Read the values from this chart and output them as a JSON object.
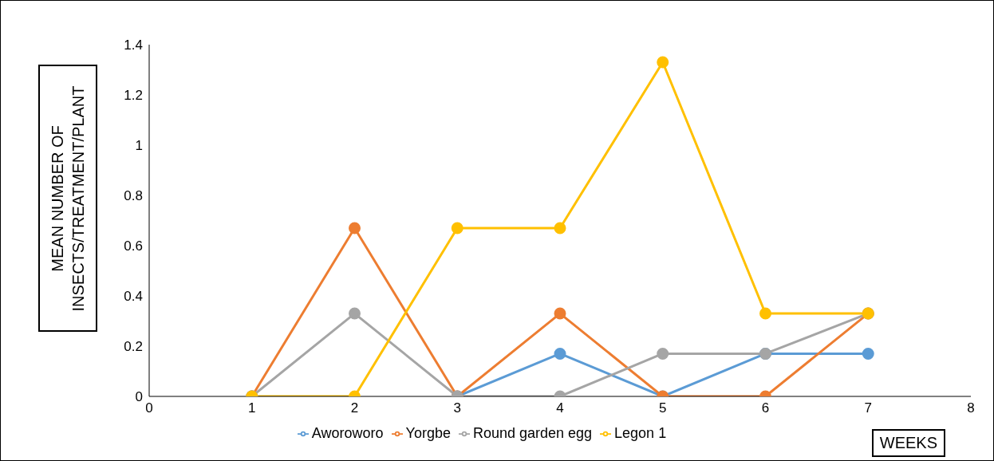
{
  "chart_data": {
    "type": "line",
    "xlabel": "WEEKS",
    "ylabel": "MEAN NUMBER OF INSECTS/TREATMENT/PLANT",
    "x": [
      1,
      2,
      3,
      4,
      5,
      6,
      7
    ],
    "series": [
      {
        "name": "Aworoworo",
        "color": "#5b9bd5",
        "values": [
          0,
          null,
          0,
          0.17,
          0,
          0.17,
          0.17
        ]
      },
      {
        "name": "Yorgbe",
        "color": "#ed7d31",
        "values": [
          0,
          0.67,
          0,
          0.33,
          0,
          0,
          0.33
        ]
      },
      {
        "name": "Round garden egg",
        "color": "#a5a5a5",
        "values": [
          0,
          0.33,
          0,
          0,
          0.17,
          0.17,
          0.33
        ]
      },
      {
        "name": "Legon 1",
        "color": "#ffc000",
        "values": [
          0,
          0,
          0.67,
          0.67,
          1.33,
          0.33,
          0.33
        ]
      }
    ],
    "xlim": [
      0,
      8
    ],
    "xticks": [
      0,
      1,
      2,
      3,
      4,
      5,
      6,
      7,
      8
    ],
    "ylim": [
      0,
      1.4
    ],
    "yticks": [
      0,
      0.2,
      0.4,
      0.6,
      0.8,
      1,
      1.2,
      1.4
    ],
    "grid": false,
    "legend": "bottom",
    "marker": "circle",
    "line_style": "solid"
  }
}
